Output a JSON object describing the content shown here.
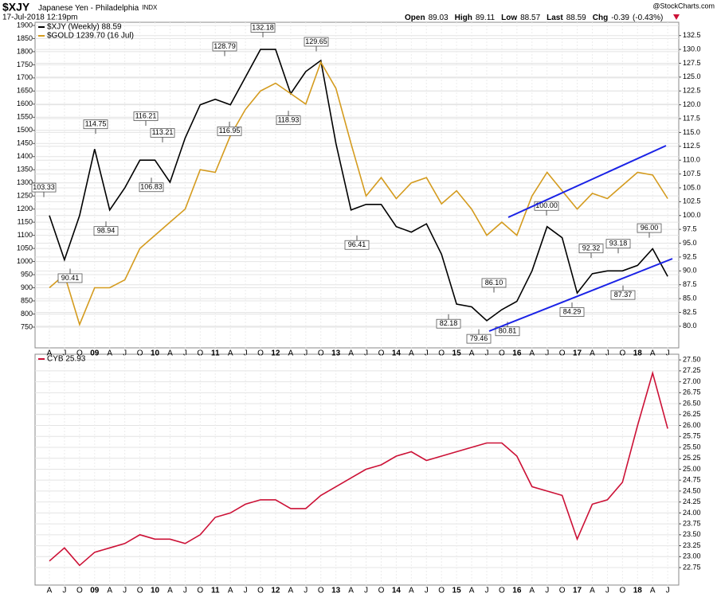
{
  "header": {
    "symbol": "$XJY",
    "name": "Japanese Yen - Philadelphia",
    "exchange": "INDX",
    "timestamp": "17-Jul-2018 12:19pm",
    "credit": "@StockCharts.com",
    "quote": [
      {
        "label": "Open",
        "value": 89.03
      },
      {
        "label": "High",
        "value": 89.11
      },
      {
        "label": "Low",
        "value": 88.57
      },
      {
        "label": "Last",
        "value": 88.59
      },
      {
        "label": "Chg",
        "value": -0.39
      }
    ],
    "change_pct": {
      "value": -0.43,
      "label": "(-0.43%)"
    }
  },
  "chart_data": [
    {
      "type": "line",
      "categories": [
        "A",
        "J",
        "O",
        "09",
        "A",
        "J",
        "O",
        "10",
        "A",
        "J",
        "O",
        "11",
        "A",
        "J",
        "O",
        "12",
        "A",
        "J",
        "O",
        "13",
        "A",
        "J",
        "O",
        "14",
        "A",
        "J",
        "O",
        "15",
        "A",
        "J",
        "O",
        "16",
        "A",
        "J",
        "O",
        "17",
        "A",
        "J",
        "O",
        "18",
        "A",
        "J"
      ],
      "series": [
        {
          "name": "$XJY (Weekly) 88.59",
          "color": "#000000",
          "axis": "y2",
          "values": [
            100,
            92,
            100,
            112,
            101,
            105,
            110,
            110,
            106,
            114,
            120,
            121,
            120,
            125,
            130,
            130,
            122,
            126,
            128,
            113,
            101,
            102,
            102,
            98,
            97,
            98.5,
            93,
            84,
            83.5,
            81,
            83,
            84.5,
            90,
            98,
            96,
            86,
            89.5,
            90,
            90,
            91,
            94,
            89
          ]
        },
        {
          "name": "$GOLD 1239.70 (16 Jul)",
          "color": "#d49b1e",
          "values": [
            900,
            950,
            760,
            900,
            900,
            930,
            1050,
            1100,
            1150,
            1200,
            1350,
            1340,
            1480,
            1580,
            1650,
            1680,
            1640,
            1600,
            1760,
            1660,
            1450,
            1250,
            1320,
            1240,
            1300,
            1320,
            1220,
            1270,
            1200,
            1100,
            1150,
            1100,
            1250,
            1340,
            1270,
            1200,
            1260,
            1240,
            1290,
            1340,
            1330,
            1240
          ]
        }
      ],
      "ylim": [
        671,
        1912
      ],
      "yticks": [
        750,
        800,
        850,
        900,
        950,
        1000,
        1050,
        1100,
        1150,
        1200,
        1250,
        1300,
        1350,
        1400,
        1450,
        1500,
        1550,
        1600,
        1650,
        1700,
        1750,
        1800,
        1850,
        1900
      ],
      "y2lim": [
        76.1,
        134.9
      ],
      "y2ticks": [
        {
          "value": 80,
          "label": "80.0"
        },
        82.5,
        {
          "value": 85,
          "label": "85.0"
        },
        87.5,
        {
          "value": 90,
          "label": "90.0"
        },
        92.5,
        {
          "value": 95,
          "label": "95.0"
        },
        97.5,
        {
          "value": 100,
          "label": "100.0"
        },
        102.5,
        {
          "value": 105,
          "label": "105.0"
        },
        107.5,
        {
          "value": 110,
          "label": "110.0"
        },
        112.5,
        {
          "value": 115,
          "label": "115.0"
        },
        117.5,
        {
          "value": 120,
          "label": "120.0"
        },
        122.5,
        {
          "value": 125,
          "label": "125.0"
        },
        127.5,
        {
          "value": 130,
          "label": "130.0"
        },
        132.5
      ],
      "annotations": [
        {
          "value": 103.33,
          "label": "103.33"
        },
        {
          "value": 90.41,
          "label": "90.41"
        },
        {
          "value": 114.75,
          "label": "114.75"
        },
        {
          "value": 98.94,
          "label": "98.94"
        },
        {
          "value": 116.21,
          "label": "116.21"
        },
        {
          "value": 113.21,
          "label": "113.21"
        },
        {
          "value": 106.83,
          "label": "106.83"
        },
        {
          "value": 128.79,
          "label": "128.79"
        },
        {
          "value": 116.95,
          "label": "116.95"
        },
        {
          "value": 132.18,
          "label": "132.18"
        },
        {
          "value": 118.93,
          "label": "118.93"
        },
        {
          "value": 129.65,
          "label": "129.65"
        },
        {
          "value": 96.41,
          "label": "96.41"
        },
        {
          "value": 82.18,
          "label": "82.18"
        },
        {
          "value": 79.46,
          "label": "79.46"
        },
        {
          "value": 86.1,
          "label": "86.10"
        },
        {
          "value": 80.81,
          "label": "80.81"
        },
        {
          "value": 100,
          "label": "100.00"
        },
        {
          "value": 84.29,
          "label": "84.29"
        },
        {
          "value": 92.32,
          "label": "92.32"
        },
        {
          "value": 93.18,
          "label": "93.18"
        },
        {
          "value": 87.37,
          "label": "87.37"
        },
        {
          "value": 96,
          "label": "96.00"
        }
      ],
      "grid": true
    },
    {
      "type": "line",
      "categories": [
        "A",
        "J",
        "O",
        "09",
        "A",
        "J",
        "O",
        "10",
        "A",
        "J",
        "O",
        "11",
        "A",
        "J",
        "O",
        "12",
        "A",
        "J",
        "O",
        "13",
        "A",
        "J",
        "O",
        "14",
        "A",
        "J",
        "O",
        "15",
        "A",
        "J",
        "O",
        "16",
        "A",
        "J",
        "O",
        "17",
        "A",
        "J",
        "O",
        "18",
        "A",
        "J"
      ],
      "series": [
        {
          "name": "CYB 25.93",
          "color": "#cc1136",
          "values": [
            22.9,
            23.2,
            22.8,
            23.1,
            23.2,
            23.3,
            23.5,
            23.4,
            23.4,
            23.3,
            23.5,
            23.9,
            24.0,
            24.2,
            24.3,
            24.3,
            24.1,
            24.1,
            24.4,
            24.6,
            24.8,
            25.0,
            25.1,
            25.3,
            25.4,
            25.2,
            25.3,
            25.4,
            25.5,
            25.6,
            25.6,
            25.3,
            24.6,
            24.5,
            24.4,
            23.4,
            24.2,
            24.3,
            24.7,
            26.0,
            27.2,
            25.93
          ]
        }
      ],
      "ylim": [
        22.35,
        27.63
      ],
      "yaxis": "right",
      "yticks": [
        22.75,
        {
          "value": 23,
          "label": "23.00"
        },
        23.25,
        {
          "value": 23.5,
          "label": "23.50"
        },
        23.75,
        {
          "value": 24,
          "label": "24.00"
        },
        24.25,
        {
          "value": 24.5,
          "label": "24.50"
        },
        24.75,
        {
          "value": 25,
          "label": "25.00"
        },
        25.25,
        {
          "value": 25.5,
          "label": "25.50"
        },
        25.75,
        {
          "value": 26,
          "label": "26.00"
        },
        26.25,
        {
          "value": 26.5,
          "label": "26.50"
        },
        26.75,
        {
          "value": 27,
          "label": "27.00"
        },
        27.25,
        {
          "value": 27.5,
          "label": "27.50"
        }
      ],
      "grid": true
    }
  ]
}
